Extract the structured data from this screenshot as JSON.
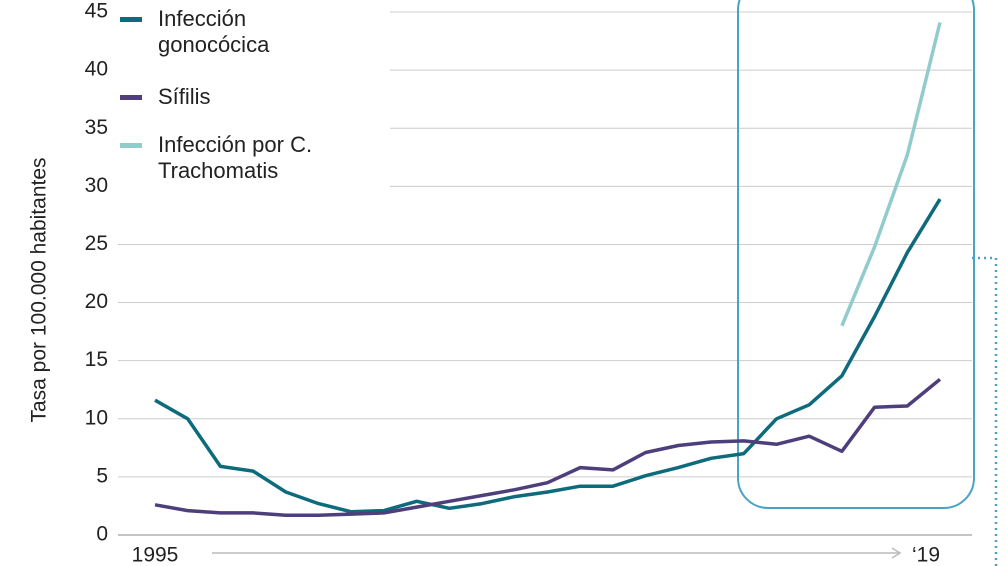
{
  "chart_data": {
    "type": "line",
    "y_label": "Tasa por 100.000 habitantes",
    "categories": [
      "1995",
      null,
      null,
      null,
      null,
      null,
      null,
      null,
      null,
      null,
      null,
      null,
      null,
      null,
      null,
      null,
      null,
      null,
      null,
      null,
      null,
      null,
      null,
      null,
      "‘19"
    ],
    "series": [
      {
        "name": "Infección gonocócica",
        "color": "#0d6b7c",
        "values": [
          11.6,
          10.0,
          5.9,
          5.5,
          3.7,
          2.7,
          2.0,
          2.1,
          2.9,
          2.3,
          2.7,
          3.3,
          3.7,
          4.2,
          4.2,
          5.1,
          5.8,
          6.6,
          7.0,
          10.0,
          11.2,
          13.7,
          18.8,
          24.3,
          28.9
        ]
      },
      {
        "name": "Sífilis",
        "color": "#4e3f7c",
        "values": [
          2.6,
          2.1,
          1.9,
          1.9,
          1.7,
          1.7,
          1.8,
          1.9,
          2.4,
          2.9,
          3.4,
          3.9,
          4.5,
          5.8,
          5.6,
          7.1,
          7.7,
          8.0,
          8.1,
          7.8,
          8.5,
          7.2,
          11.0,
          11.1,
          13.4
        ]
      },
      {
        "name": "Infección por C. Trachomatis",
        "color": "#92cbcc",
        "values": [
          null,
          null,
          null,
          null,
          null,
          null,
          null,
          null,
          null,
          null,
          null,
          null,
          null,
          null,
          null,
          null,
          null,
          null,
          null,
          null,
          null,
          18.0,
          24.8,
          32.7,
          44.1
        ]
      }
    ],
    "ylim": [
      0,
      45
    ],
    "yticks": [
      0,
      5,
      10,
      15,
      20,
      25,
      30,
      35,
      40,
      45
    ],
    "grid": true
  }
}
